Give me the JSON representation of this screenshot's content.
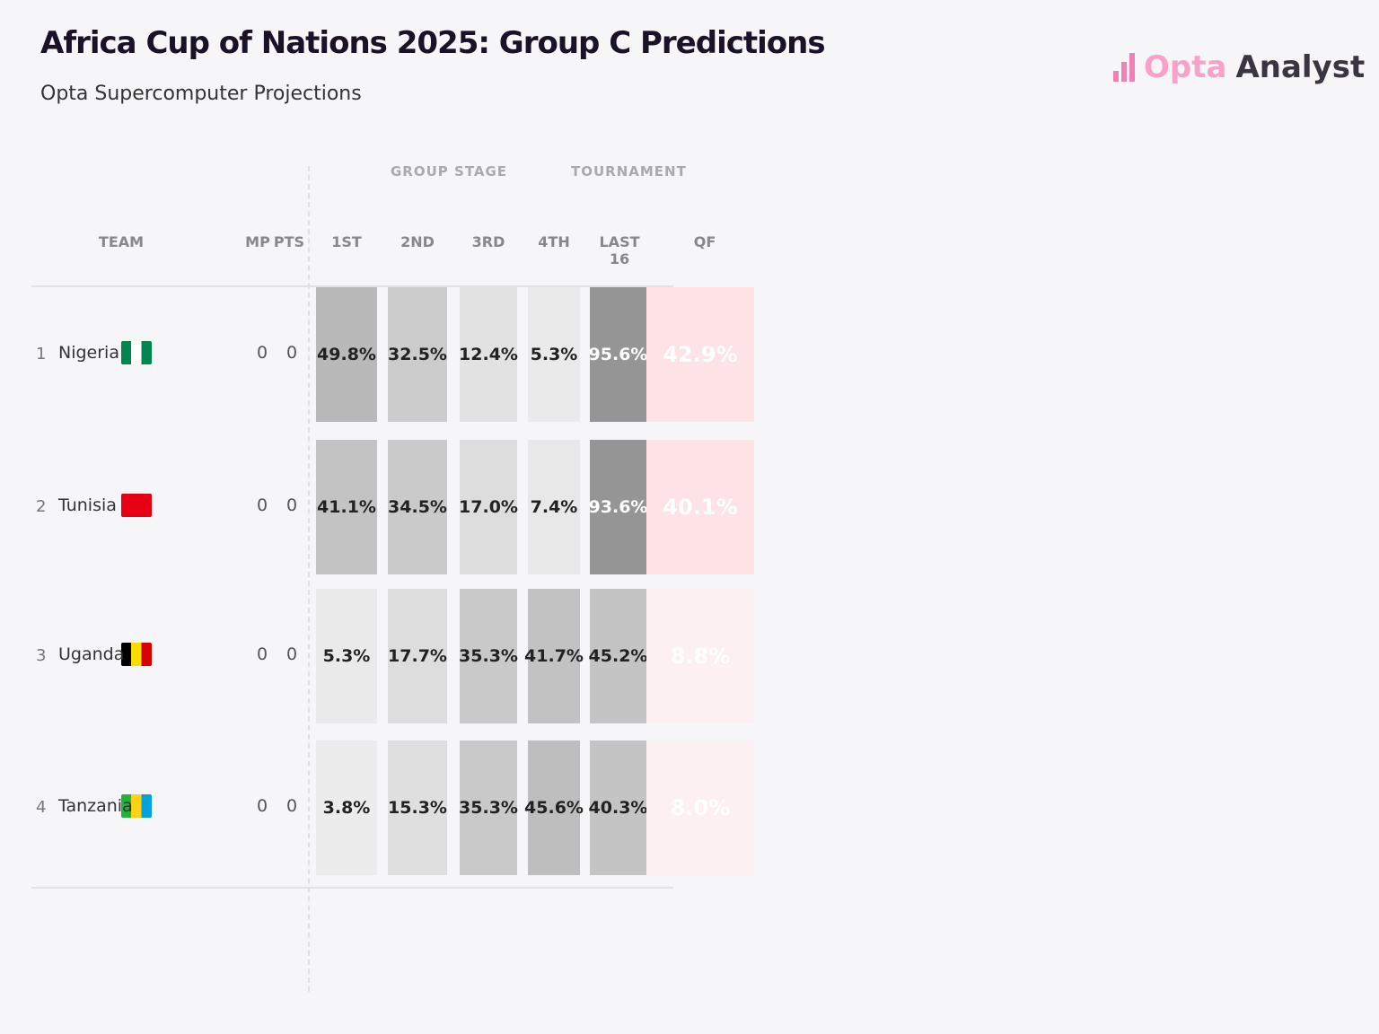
{
  "header": {
    "title": "Africa Cup of Nations 2025: Group C Predictions",
    "subtitle": "Opta Supercomputer Projections",
    "logo_text": [
      "Opta",
      "Analyst"
    ]
  },
  "column_groups": [
    "GROUP STAGE",
    "TOURNAMENT"
  ],
  "columns": {
    "team": "TEAM",
    "mp": "MP",
    "pts": "PTS",
    "first": "1ST",
    "second": "2ND",
    "third": "3RD",
    "fourth": "4TH",
    "last16": "LAST 16",
    "qf": "QF"
  },
  "colors": {
    "accent": "#f07fb4",
    "qf_bg": "#fde3e6",
    "last16_bg": "#959595"
  },
  "rows": [
    {
      "rank": "1",
      "team": "Nigeria",
      "flag": [
        "#008751",
        "#ffffff",
        "#008751"
      ],
      "mp": "0",
      "pts": "0",
      "first": "49.8%",
      "second": "32.5%",
      "third": "12.4%",
      "fourth": "5.3%",
      "last16": "95.6%",
      "qf": "42.9%"
    },
    {
      "rank": "2",
      "team": "Tunisia",
      "flag": [
        "#e70013",
        "#e70013",
        "#e70013"
      ],
      "mp": "0",
      "pts": "0",
      "first": "41.1%",
      "second": "34.5%",
      "third": "17.0%",
      "fourth": "7.4%",
      "last16": "93.6%",
      "qf": "40.1%"
    },
    {
      "rank": "3",
      "team": "Uganda",
      "flag": [
        "#000000",
        "#fcdc04",
        "#d90000"
      ],
      "mp": "0",
      "pts": "0",
      "first": "5.3%",
      "second": "17.7%",
      "third": "35.3%",
      "fourth": "41.7%",
      "last16": "45.2%",
      "qf": "8.8%"
    },
    {
      "rank": "4",
      "team": "Tanzania",
      "flag": [
        "#1eb53a",
        "#fcd116",
        "#00a3dd"
      ],
      "mp": "0",
      "pts": "0",
      "first": "3.8%",
      "second": "15.3%",
      "third": "35.3%",
      "fourth": "45.6%",
      "last16": "40.3%",
      "qf": "8.0%"
    }
  ]
}
